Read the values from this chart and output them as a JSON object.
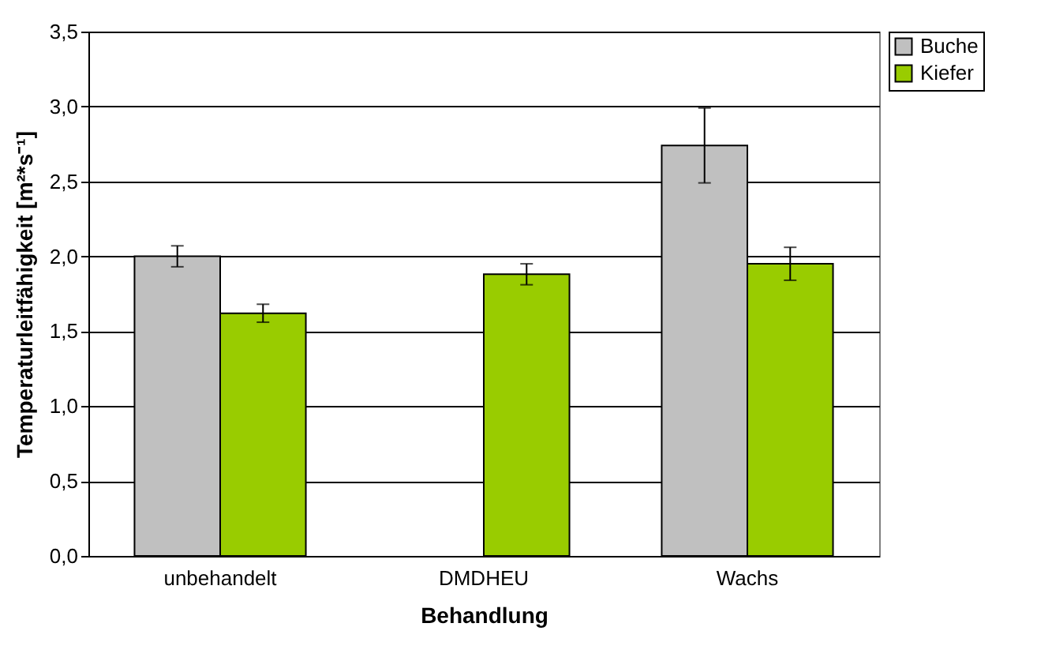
{
  "chart_data": {
    "type": "bar",
    "xlabel": "Behandlung",
    "ylabel": "Temperaturleitfähigkeit [m²*s⁻¹]",
    "categories": [
      "unbehandelt",
      "DMDHEU",
      "Wachs"
    ],
    "series": [
      {
        "name": "Buche",
        "color": "#c0c0c0",
        "values": [
          2.0,
          null,
          2.74
        ],
        "errors": [
          0.07,
          null,
          0.25
        ]
      },
      {
        "name": "Kiefer",
        "color": "#99cc00",
        "values": [
          1.62,
          1.88,
          1.95
        ],
        "errors": [
          0.06,
          0.07,
          0.11
        ]
      }
    ],
    "ylim": [
      0,
      3.5
    ],
    "yticks": [
      {
        "value": 0,
        "label": "0,0"
      },
      {
        "value": 0.5,
        "label": "0,5"
      },
      {
        "value": 1,
        "label": "1,0"
      },
      {
        "value": 1.5,
        "label": "1,5"
      },
      {
        "value": 2,
        "label": "2,0"
      },
      {
        "value": 2.5,
        "label": "2,5"
      },
      {
        "value": 3,
        "label": "3,0"
      },
      {
        "value": 3.5,
        "label": "3,5"
      }
    ],
    "grid": "y",
    "legend": "top right"
  }
}
